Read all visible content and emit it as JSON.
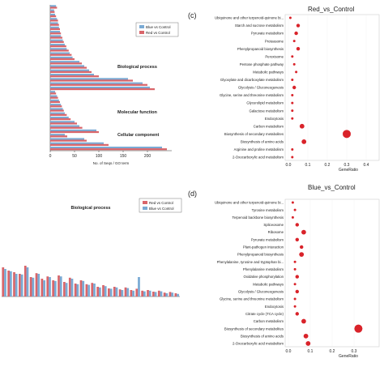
{
  "panels": {
    "c": {
      "label": "(c)",
      "title": "Red_vs_Control"
    },
    "d": {
      "label": "(d)",
      "title": "Blue_vs_Control"
    }
  },
  "colors": {
    "red": "#d9232a",
    "bar_red": "#d9656a",
    "bar_blue": "#7aaad4",
    "frame": "#cfcfcf"
  },
  "chart_data": [
    {
      "id": "go_bar_top",
      "type": "bar",
      "orientation": "horizontal",
      "xlabel": "No. of Seqs / GO term",
      "xticks": [
        "0",
        "50",
        "100",
        "150",
        "200"
      ],
      "xlim": [
        0,
        250
      ],
      "legend": [
        "Blue vs Control",
        "Red vs Control"
      ],
      "groups": [
        {
          "label": "Biological process",
          "rows": 20
        },
        {
          "label": "Molecular function",
          "rows": 10
        },
        {
          "label": "Cellular component",
          "rows": 4
        }
      ],
      "series": [
        {
          "name": "Blue vs Control",
          "values": [
            12,
            8,
            10,
            14,
            16,
            18,
            20,
            22,
            26,
            30,
            34,
            40,
            46,
            60,
            70,
            80,
            90,
            160,
            190,
            205,
            10,
            14,
            18,
            22,
            26,
            30,
            38,
            50,
            60,
            95,
            30,
            70,
            110,
            230
          ]
        },
        {
          "name": "Red vs Control",
          "values": [
            14,
            9,
            12,
            16,
            18,
            20,
            22,
            25,
            28,
            33,
            38,
            44,
            50,
            65,
            75,
            85,
            100,
            170,
            200,
            215,
            12,
            16,
            20,
            24,
            28,
            34,
            42,
            55,
            66,
            100,
            35,
            75,
            120,
            240
          ]
        }
      ]
    },
    {
      "id": "go_bar_bottom",
      "type": "bar",
      "title": "Biological process",
      "legend": [
        "Red vs Control",
        "Blue vs Control"
      ],
      "series": [
        {
          "name": "Red vs Control",
          "values": [
            0.9,
            0.8,
            0.75,
            0.7,
            0.95,
            0.6,
            0.72,
            0.55,
            0.62,
            0.5,
            0.65,
            0.45,
            0.58,
            0.4,
            0.5,
            0.38,
            0.42,
            0.3,
            0.35,
            0.25,
            0.3,
            0.22,
            0.28,
            0.2,
            0.24,
            0.18,
            0.2,
            0.15,
            0.18,
            0.12,
            0.14,
            0.1
          ]
        },
        {
          "name": "Blue vs Control",
          "values": [
            0.85,
            0.78,
            0.7,
            0.68,
            0.9,
            0.58,
            0.7,
            0.5,
            0.6,
            0.48,
            0.62,
            0.42,
            0.55,
            0.38,
            0.48,
            0.36,
            0.4,
            0.28,
            0.32,
            0.24,
            0.28,
            0.2,
            0.26,
            0.18,
            0.6,
            0.16,
            0.18,
            0.14,
            0.16,
            0.1,
            0.12,
            0.08
          ]
        }
      ]
    },
    {
      "id": "kegg_red",
      "type": "scatter",
      "title": "Red_vs_Control",
      "xlabel": "GeneRatio",
      "xlim": [
        0,
        0.45
      ],
      "xticks": [
        "0.0",
        "0.1",
        "0.2",
        "0.3",
        "0.4"
      ],
      "categories": [
        "Ubiquinone and other terpenoid-quinone bi...",
        "Starch and sucrose metabolism",
        "Pyruvate metabolism",
        "Proteasome",
        "Phenylpropanoid biosynthesis",
        "Peroxisome",
        "Pentose phosphate pathway",
        "Metabolic pathways",
        "Glyoxylate and dicarboxylate metabolism",
        "Glycolysis / Gluconeogenesis",
        "Glycine, serine and threonine metabolism",
        "Glycerolipid metabolism",
        "Galactose metabolism",
        "Endocytosis",
        "Carbon metabolism",
        "Biosynthesis of secondary metabolites",
        "Biosynthesis of amino acids",
        "Arginine and proline metabolism",
        "2-Oxocarboxylic acid metabolism"
      ],
      "values": [
        0.01,
        0.05,
        0.04,
        0.03,
        0.05,
        0.02,
        0.03,
        0.04,
        0.02,
        0.03,
        0.02,
        0.02,
        0.02,
        0.02,
        0.07,
        0.3,
        0.08,
        0.02,
        0.02
      ],
      "sizes": [
        1,
        2,
        2,
        1,
        2,
        1,
        1,
        1,
        1,
        2,
        1,
        1,
        1,
        1,
        3,
        6,
        3,
        1,
        1
      ]
    },
    {
      "id": "kegg_blue",
      "type": "scatter",
      "title": "Blue_vs_Control",
      "xlabel": "GeneRatio",
      "xlim": [
        0,
        0.4
      ],
      "xticks": [
        "0.0",
        "0.1",
        "0.2",
        "0.3"
      ],
      "categories": [
        "Ubiquinone and other terpenoid-quinone bi...",
        "Tyrosine metabolism",
        "Terpenoid backbone biosynthesis",
        "Spliceosome",
        "Ribosome",
        "Pyruvate metabolism",
        "Plant-pathogen interaction",
        "Phenylpropanoid biosynthesis",
        "Phenylalanine, tyrosine and tryptophan bi...",
        "Phenylalanine metabolism",
        "Oxidative phosphorylation",
        "Metabolic pathways",
        "Glycolysis / Gluconeogenesis",
        "Glycine, serine and threonine metabolism",
        "Endocytosis",
        "Citrate cycle (TCA cycle)",
        "Carbon metabolism",
        "Biosynthesis of secondary metabolites",
        "Biosynthesis of amino acids",
        "2-Oxocarboxylic acid metabolism"
      ],
      "values": [
        0.02,
        0.03,
        0.02,
        0.04,
        0.07,
        0.04,
        0.06,
        0.06,
        0.03,
        0.03,
        0.04,
        0.03,
        0.04,
        0.03,
        0.03,
        0.04,
        0.07,
        0.32,
        0.08,
        0.09
      ],
      "sizes": [
        1,
        1,
        1,
        2,
        3,
        2,
        2,
        3,
        1,
        1,
        2,
        1,
        2,
        1,
        1,
        2,
        3,
        6,
        3,
        3
      ]
    }
  ]
}
